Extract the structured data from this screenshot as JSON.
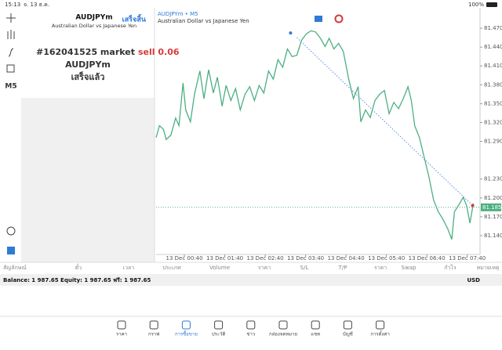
{
  "status_bar": {
    "time": "15:13",
    "date": "จ. 13 ธ.ค.",
    "battery": "100%"
  },
  "toolbar": {
    "timeframe": "M5"
  },
  "order_panel": {
    "symbol": "AUDJPYm",
    "description": "Australian Dollar vs Japanese Yen",
    "done_button": "เสร็จสิ้น",
    "order": "#162041525 market",
    "side": "sell 0.06",
    "order_symbol": "AUDJPYm",
    "result": "เสร็จแล้ว"
  },
  "chart_data": {
    "type": "line",
    "title": "AUDJPYm • M5",
    "subtitle": "Australian Dollar vs Japanese Yen",
    "color": "#4caf82",
    "x": [
      -2,
      3,
      9,
      13,
      20,
      27,
      32,
      38,
      42,
      49,
      55,
      63,
      69,
      76,
      83,
      89,
      96,
      102,
      109,
      116,
      123,
      130,
      137,
      144,
      151,
      158,
      165,
      172,
      179,
      186,
      193,
      200,
      207,
      214,
      221,
      228,
      235,
      242,
      249,
      255,
      262,
      269,
      276,
      284,
      291,
      298,
      302,
      309,
      316,
      323,
      330,
      337,
      344,
      351,
      358,
      365,
      372,
      377,
      382,
      389,
      396,
      403,
      410,
      417,
      424,
      431,
      437,
      441,
      447,
      454,
      459,
      464,
      469
    ],
    "values": [
      81.296,
      81.315,
      81.309,
      81.293,
      81.3,
      81.327,
      81.315,
      81.383,
      81.34,
      81.321,
      81.365,
      81.402,
      81.358,
      81.404,
      81.367,
      81.392,
      81.346,
      81.379,
      81.355,
      81.374,
      81.34,
      81.365,
      81.377,
      81.355,
      81.379,
      81.367,
      81.402,
      81.389,
      81.42,
      81.408,
      81.437,
      81.425,
      81.427,
      81.451,
      81.461,
      81.466,
      81.464,
      81.454,
      81.441,
      81.454,
      81.437,
      81.446,
      81.433,
      81.389,
      81.358,
      81.377,
      81.321,
      81.34,
      81.328,
      81.355,
      81.365,
      81.371,
      81.334,
      81.352,
      81.342,
      81.358,
      81.377,
      81.355,
      81.315,
      81.296,
      81.265,
      81.234,
      81.197,
      81.178,
      81.166,
      81.151,
      81.134,
      81.178,
      81.188,
      81.201,
      81.188,
      81.16,
      81.191
    ],
    "xlim": [
      -2,
      479
    ],
    "ylim": [
      81.11,
      81.5
    ],
    "xticks": [
      {
        "value": 40,
        "label": "13 Dec 00:40"
      },
      {
        "value": 100,
        "label": "13 Dec 01:40"
      },
      {
        "value": 160,
        "label": "13 Dec 02:40"
      },
      {
        "value": 220,
        "label": "13 Dec 03:40"
      },
      {
        "value": 280,
        "label": "13 Dec 04:40"
      },
      {
        "value": 340,
        "label": "13 Dec 05:40"
      },
      {
        "value": 400,
        "label": "13 Dec 06:40"
      },
      {
        "value": 460,
        "label": "13 Dec 07:40"
      }
    ],
    "yticks": [
      {
        "value": 81.47,
        "label": "81.470"
      },
      {
        "value": 81.44,
        "label": "81.440"
      },
      {
        "value": 81.41,
        "label": "81.410"
      },
      {
        "value": 81.38,
        "label": "81.380"
      },
      {
        "value": 81.35,
        "label": "81.350"
      },
      {
        "value": 81.32,
        "label": "81.320"
      },
      {
        "value": 81.29,
        "label": "81.290"
      },
      {
        "value": 81.23,
        "label": "81.230"
      },
      {
        "value": 81.2,
        "label": "81.200"
      },
      {
        "value": 81.17,
        "label": "81.170"
      },
      {
        "value": 81.14,
        "label": "81.140"
      }
    ],
    "price_line": {
      "value": 81.185,
      "label": "81.185"
    },
    "trade_line": {
      "x": [
        207,
        468
      ],
      "values": [
        81.455,
        81.188
      ]
    }
  },
  "table": {
    "headers": [
      "สัญลักษณ์",
      "ตั๋ว",
      "เวลา",
      "ประเภท",
      "Volume",
      "ราคา",
      "S/L",
      "T/P",
      "ราคา",
      "Swap",
      "กำไร",
      "หมายเหตุ"
    ],
    "balance": "Balance: 1 987.65 Equity: 1 987.65 ฟรี: 1 987.65",
    "currency": "USD"
  },
  "nav": [
    "ราคา",
    "กราฟ",
    "การซื้อขาย",
    "ประวัติ",
    "ข่าว",
    "กล่องจดหมาย",
    "แชท",
    "บัญชี",
    "การตั้งค่า"
  ]
}
